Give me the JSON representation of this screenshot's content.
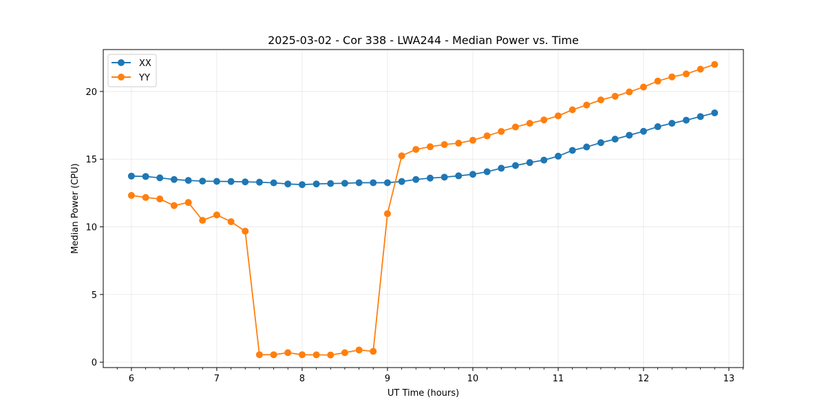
{
  "chart_data": {
    "type": "line",
    "title": "2025-03-02 - Cor 338 - LWA244 - Median Power vs. Time",
    "xlabel": "UT Time (hours)",
    "ylabel": "Median Power (CPU)",
    "xlim": [
      5.67,
      13.17
    ],
    "ylim": [
      -0.4,
      23.1
    ],
    "xticks": [
      6,
      7,
      8,
      9,
      10,
      11,
      12,
      13
    ],
    "yticks": [
      0,
      5,
      10,
      15,
      20
    ],
    "grid": true,
    "legend_position": "top-left",
    "x": [
      6.0,
      6.167,
      6.333,
      6.5,
      6.667,
      6.833,
      7.0,
      7.167,
      7.333,
      7.5,
      7.667,
      7.833,
      8.0,
      8.167,
      8.333,
      8.5,
      8.667,
      8.833,
      9.0,
      9.167,
      9.333,
      9.5,
      9.667,
      9.833,
      10.0,
      10.167,
      10.333,
      10.5,
      10.667,
      10.833,
      11.0,
      11.167,
      11.333,
      11.5,
      11.667,
      11.833,
      12.0,
      12.167,
      12.333,
      12.5,
      12.667,
      12.833
    ],
    "series": [
      {
        "name": "XX",
        "color": "#1f77b4",
        "values": [
          13.75,
          13.72,
          13.62,
          13.5,
          13.43,
          13.38,
          13.36,
          13.35,
          13.32,
          13.3,
          13.25,
          13.17,
          13.12,
          13.17,
          13.2,
          13.22,
          13.26,
          13.26,
          13.26,
          13.35,
          13.5,
          13.6,
          13.67,
          13.77,
          13.88,
          14.07,
          14.33,
          14.53,
          14.75,
          14.93,
          15.22,
          15.65,
          15.9,
          16.22,
          16.48,
          16.77,
          17.06,
          17.4,
          17.65,
          17.88,
          18.15,
          18.42
        ]
      },
      {
        "name": "YY",
        "color": "#ff7f0e",
        "values": [
          12.32,
          12.17,
          12.06,
          11.57,
          11.8,
          10.48,
          10.88,
          10.38,
          9.68,
          0.55,
          0.55,
          0.7,
          0.55,
          0.54,
          0.53,
          0.7,
          0.9,
          0.8,
          10.97,
          15.25,
          15.72,
          15.92,
          16.08,
          16.18,
          16.4,
          16.72,
          17.05,
          17.38,
          17.65,
          17.9,
          18.2,
          18.65,
          19.0,
          19.38,
          19.65,
          19.97,
          20.33,
          20.77,
          21.08,
          21.3,
          21.65,
          22.0
        ]
      }
    ]
  }
}
